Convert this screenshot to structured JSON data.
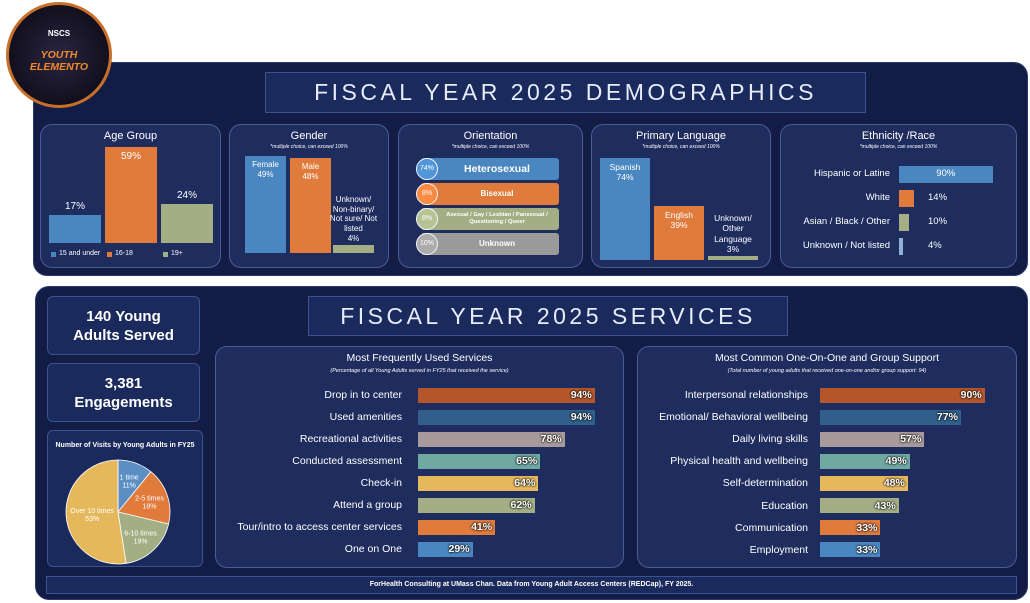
{
  "logo": {
    "name": "NSCS",
    "title": "YOUTH ELEMENTO"
  },
  "demographics_title": "FISCAL YEAR 2025 DEMOGRAPHICS",
  "services_title": "FISCAL YEAR 2025 SERVICES",
  "stats": [
    {
      "number": "140",
      "label": "Young Adults Served"
    },
    {
      "number": "3,381",
      "label": "Engagements"
    }
  ],
  "footer": "ForHealth Consulting at UMass Chan. Data from Young Adult Access Centers (REDCap), FY 2025.",
  "chart_data": [
    {
      "type": "column",
      "title": "Age Group",
      "categories": [
        "15 and under",
        "16-18",
        "19+"
      ],
      "values": [
        17,
        59,
        24
      ],
      "value_labels": [
        "17%",
        "59%",
        "24%"
      ],
      "colors": [
        "#4a86c0",
        "#e07b3c",
        "#a3ae84"
      ],
      "legend": "bottom"
    },
    {
      "type": "column",
      "title": "Gender",
      "subtitle": "*multiple choice, can exceed 100%",
      "categories": [
        "Female",
        "Male",
        "Unknown/ Non-binary/ Not sure/ Not listed"
      ],
      "values": [
        49,
        48,
        4
      ],
      "value_labels": [
        "49%",
        "48%",
        "4%"
      ],
      "colors": [
        "#4a86c0",
        "#e07b3c",
        "#a3ae84"
      ]
    },
    {
      "type": "pill",
      "title": "Orientation",
      "subtitle": "*multiple choice, can exceed 100%",
      "categories": [
        "Heterosexual",
        "Bisexual",
        "Asexual / Gay / Lesbian / Pansexual / Questioning / Queer",
        "Unknown"
      ],
      "values": [
        74,
        8,
        8,
        10
      ],
      "value_labels": [
        "74%",
        "8%",
        "8%",
        "10%"
      ],
      "colors": [
        "#4a86c0",
        "#e07b3c",
        "#a3ae84",
        "#9a9a9a"
      ]
    },
    {
      "type": "column",
      "title": "Primary Language",
      "subtitle": "*multiple choice, can exceed 100%",
      "categories": [
        "Spanish",
        "English",
        "Unknown/ Other Language"
      ],
      "values": [
        74,
        39,
        3
      ],
      "value_labels": [
        "74%",
        "39%",
        "3%"
      ],
      "colors": [
        "#4a86c0",
        "#e07b3c",
        "#a3ae84"
      ]
    },
    {
      "type": "bar",
      "title": "Ethnicity /Race",
      "subtitle": "*multiple choice, can exceed 100%",
      "categories": [
        "Hispanic or Latine",
        "White",
        "Asian / Black / Other",
        "Unknown / Not listed"
      ],
      "values": [
        90,
        14,
        10,
        4
      ],
      "value_labels": [
        "90%",
        "14%",
        "10%",
        "4%"
      ],
      "colors": [
        "#4a86c0",
        "#e07b3c",
        "#a3ae84",
        "#8fb1d6"
      ]
    },
    {
      "type": "pie",
      "title": "Number of Visits by Young Adults in FY25",
      "categories": [
        "1 time",
        "2-5 times",
        "6-10 times",
        "Over 10 times"
      ],
      "values": [
        11,
        18,
        19,
        53
      ],
      "value_labels": [
        "11%",
        "18%",
        "19%",
        "53%"
      ],
      "colors": [
        "#5b8fc4",
        "#e07b3c",
        "#a3ae84",
        "#e6b85c"
      ]
    },
    {
      "type": "bar",
      "title": "Most Frequently Used Services",
      "subtitle": "(Percentage of all Young Adults served in FY25 that received the service)",
      "categories": [
        "Drop in to center",
        "Used amenities",
        "Recreational activities",
        "Conducted assessment",
        "Check-in",
        "Attend a group",
        "Tour/intro to access center services",
        "One on One"
      ],
      "values": [
        94,
        94,
        78,
        65,
        64,
        62,
        41,
        29
      ],
      "value_labels": [
        "94%",
        "94%",
        "78%",
        "65%",
        "64%",
        "62%",
        "41%",
        "29%"
      ],
      "colors": [
        "#b5562a",
        "#2f5f8a",
        "#a89a9a",
        "#6fa8a0",
        "#e6b85c",
        "#a3ae84",
        "#e07b3c",
        "#4a86c0"
      ]
    },
    {
      "type": "bar",
      "title": "Most Common One-On-One and Group Support",
      "subtitle": "(Total number of young adults that received one-on-one and/or group support: 94)",
      "categories": [
        "Interpersonal relationships",
        "Emotional/ Behavioral wellbeing",
        "Daily living skills",
        "Physical health and wellbeing",
        "Self-determination",
        "Education",
        "Communication",
        "Employment"
      ],
      "values": [
        90,
        77,
        57,
        49,
        48,
        43,
        33,
        33
      ],
      "value_labels": [
        "90%",
        "77%",
        "57%",
        "49%",
        "48%",
        "43%",
        "33%",
        "33%"
      ],
      "colors": [
        "#b5562a",
        "#2f5f8a",
        "#a89a9a",
        "#6fa8a0",
        "#e6b85c",
        "#a3ae84",
        "#e07b3c",
        "#4a86c0"
      ]
    }
  ]
}
